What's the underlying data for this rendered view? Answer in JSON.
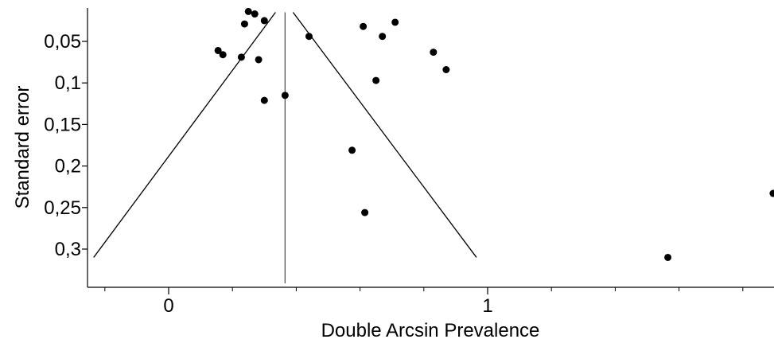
{
  "chart_data": {
    "type": "scatter",
    "title": "",
    "xlabel": "Double Arcsin Prevalence",
    "ylabel": "Standard error",
    "xlim": [
      -0.24,
      1.9
    ],
    "ylim": [
      0.0,
      0.34
    ],
    "y_reversed": true,
    "x_ticks": [
      {
        "value": 0,
        "label": "0"
      },
      {
        "value": 1,
        "label": "1"
      }
    ],
    "x_minor_ticks": [
      -0.2,
      0.2,
      0.4,
      0.6,
      0.8,
      1.2,
      1.4,
      1.6,
      1.8
    ],
    "y_ticks": [
      {
        "value": 0.05,
        "label": "0,05"
      },
      {
        "value": 0.1,
        "label": "0,1"
      },
      {
        "value": 0.15,
        "label": "0,15"
      },
      {
        "value": 0.2,
        "label": "0,2"
      },
      {
        "value": 0.25,
        "label": "0,25"
      },
      {
        "value": 0.3,
        "label": "0,3"
      }
    ],
    "pooled_estimate": 0.365,
    "funnel": [
      [
        -0.235,
        0.31
      ],
      [
        0.335,
        0.015
      ],
      [
        0.39,
        0.015
      ],
      [
        0.965,
        0.31
      ]
    ],
    "points": [
      {
        "x": 0.25,
        "y": 0.014
      },
      {
        "x": 0.27,
        "y": 0.017
      },
      {
        "x": 0.3,
        "y": 0.025
      },
      {
        "x": 0.238,
        "y": 0.029
      },
      {
        "x": 0.44,
        "y": 0.044
      },
      {
        "x": 0.61,
        "y": 0.032
      },
      {
        "x": 0.67,
        "y": 0.044
      },
      {
        "x": 0.71,
        "y": 0.027
      },
      {
        "x": 0.155,
        "y": 0.061
      },
      {
        "x": 0.17,
        "y": 0.066
      },
      {
        "x": 0.228,
        "y": 0.069
      },
      {
        "x": 0.282,
        "y": 0.072
      },
      {
        "x": 0.83,
        "y": 0.063
      },
      {
        "x": 0.87,
        "y": 0.084
      },
      {
        "x": 0.65,
        "y": 0.097
      },
      {
        "x": 0.3,
        "y": 0.121
      },
      {
        "x": 0.365,
        "y": 0.115
      },
      {
        "x": 0.575,
        "y": 0.181
      },
      {
        "x": 0.615,
        "y": 0.256
      },
      {
        "x": 1.895,
        "y": 0.233
      },
      {
        "x": 1.565,
        "y": 0.31
      }
    ],
    "grid": false,
    "legend": "none",
    "colors": {
      "point": "#000000",
      "line": "#000000",
      "pooled_line": "#555555"
    }
  }
}
